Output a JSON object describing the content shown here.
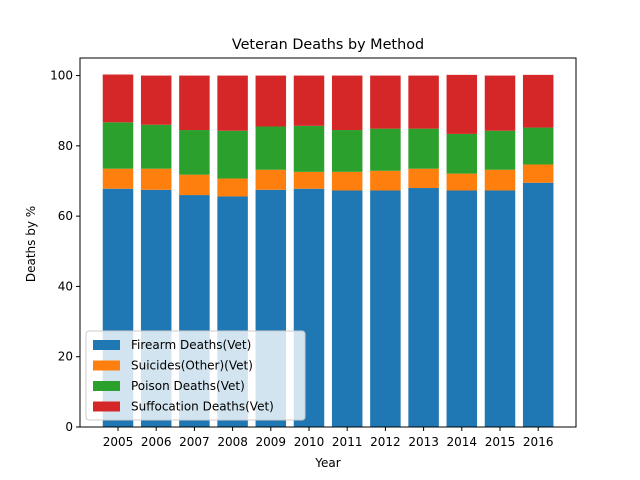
{
  "chart_data": {
    "type": "bar",
    "stacked": true,
    "title": "Veteran Deaths by Method",
    "xlabel": "Year",
    "ylabel": "Deaths by %",
    "ylim": [
      0,
      105
    ],
    "yticks": [
      0,
      20,
      40,
      60,
      80,
      100
    ],
    "categories": [
      "2005",
      "2006",
      "2007",
      "2008",
      "2009",
      "2010",
      "2011",
      "2012",
      "2013",
      "2014",
      "2015",
      "2016"
    ],
    "series": [
      {
        "name": "Firearm Deaths(Vet)",
        "color": "#1f77b4",
        "values": [
          67.8,
          67.5,
          66.0,
          65.6,
          67.5,
          67.8,
          67.3,
          67.3,
          68.0,
          67.3,
          67.3,
          69.5
        ]
      },
      {
        "name": "Suicides(Other)(Vet)",
        "color": "#ff7f0e",
        "values": [
          5.7,
          6.0,
          5.8,
          5.1,
          5.7,
          4.8,
          5.3,
          5.6,
          5.5,
          4.8,
          5.9,
          5.2
        ]
      },
      {
        "name": "Poison Deaths(Vet)",
        "color": "#2ca02c",
        "values": [
          13.2,
          12.5,
          12.7,
          13.6,
          12.3,
          13.1,
          11.9,
          12.0,
          11.4,
          11.3,
          11.1,
          10.5
        ]
      },
      {
        "name": "Suffocation Deaths(Vet)",
        "color": "#d62728",
        "values": [
          13.6,
          14.0,
          15.5,
          15.7,
          14.5,
          14.3,
          15.5,
          15.1,
          15.1,
          16.8,
          15.7,
          15.0
        ]
      }
    ],
    "legend_position": "lower-left",
    "grid": false
  }
}
